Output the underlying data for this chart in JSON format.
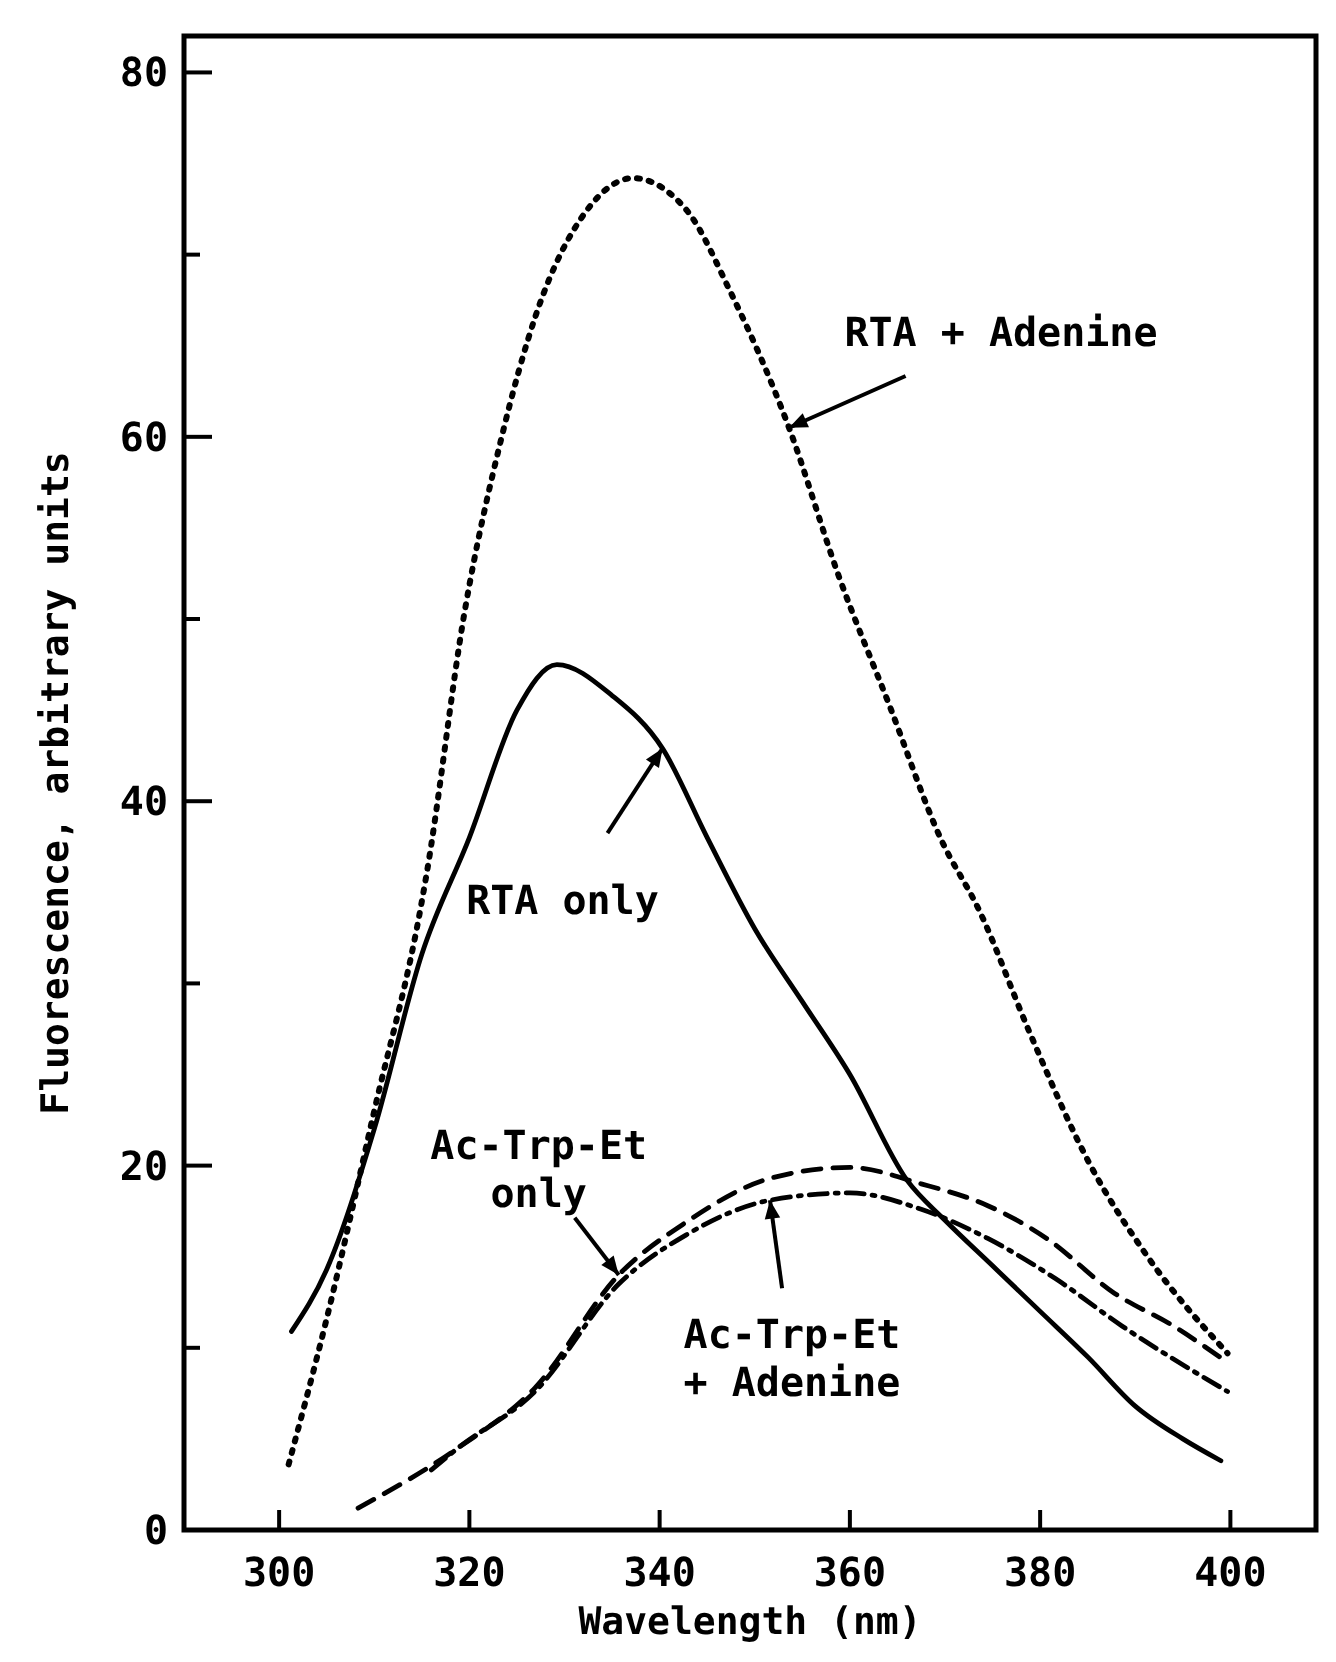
{
  "chart_data": {
    "type": "line",
    "xlabel": "Wavelength (nm)",
    "ylabel": "Fluorescence, arbitrary units",
    "xlim": [
      290,
      409
    ],
    "ylim": [
      0,
      82
    ],
    "xticks": [
      300,
      320,
      340,
      360,
      380,
      400
    ],
    "yticks": [
      0,
      {
        "value": 10,
        "label": null
      },
      20,
      {
        "value": 30,
        "label": null
      },
      40,
      {
        "value": 50,
        "label": null
      },
      60,
      {
        "value": 70,
        "label": null
      },
      80
    ],
    "grid": false,
    "marker": "none",
    "series": [
      {
        "color": "#000000",
        "line_style": "dotted",
        "x": [
          301,
          305,
          310,
          315,
          315.5,
          319.5,
          323.4,
          327,
          332.3,
          337.2,
          342.9,
          347.4,
          353.6,
          358.8,
          364.2,
          369.5,
          373.6,
          378.9,
          385.1,
          391.3,
          399.7
        ],
        "values": [
          3.6,
          11.6,
          23,
          34.5,
          36,
          50.4,
          60,
          66.7,
          72.4,
          74.2,
          72.4,
          68,
          60.5,
          52.4,
          45.2,
          38,
          34,
          27.3,
          20.2,
          15,
          9.7
        ]
      },
      {
        "color": "#000000",
        "line_style": "solid",
        "x": [
          301.3,
          305,
          310,
          315,
          320,
          325,
          329.2,
          335,
          340.3,
          345,
          350,
          355,
          360,
          366,
          370,
          375,
          380,
          385,
          390,
          395,
          399
        ],
        "values": [
          10.9,
          14.3,
          22,
          31.6,
          38,
          45,
          47.5,
          45.8,
          42.9,
          38,
          33,
          29,
          25,
          19.2,
          17,
          14.5,
          12,
          9.5,
          6.8,
          5,
          3.8
        ]
      },
      {
        "color": "#000000",
        "line_style": "dashed",
        "x": [
          308.3,
          318.8,
          326.9,
          335.7,
          342.8,
          351.6,
          360,
          367.5,
          374.5,
          380.7,
          387.8,
          394,
          399.7
        ],
        "values": [
          1.2,
          4.5,
          7.8,
          14,
          16.9,
          19.3,
          19.9,
          19,
          17.8,
          16,
          13,
          11.2,
          9.2
        ]
      },
      {
        "color": "#000000",
        "line_style": "dashdot",
        "x": [
          316,
          318.8,
          326.9,
          335.7,
          342.8,
          351.6,
          360,
          367.5,
          374.5,
          381.6,
          388.6,
          399.7
        ],
        "values": [
          3.3,
          4.5,
          7.6,
          13.5,
          16.2,
          18.1,
          18.5,
          17.6,
          16,
          13.8,
          11.2,
          7.6
        ]
      }
    ],
    "annotations": [
      {
        "text": "RTA + Adenine",
        "x": 353.6,
        "y": 60.5
      },
      {
        "text": "RTA only",
        "x": 340.3,
        "y": 42.9
      },
      {
        "text": "Ac-Trp-Et\nonly",
        "x": 335.7,
        "y": 14
      },
      {
        "text": "Ac-Trp-Et\n+ Adenine",
        "x": 351.6,
        "y": 18.1
      }
    ]
  }
}
